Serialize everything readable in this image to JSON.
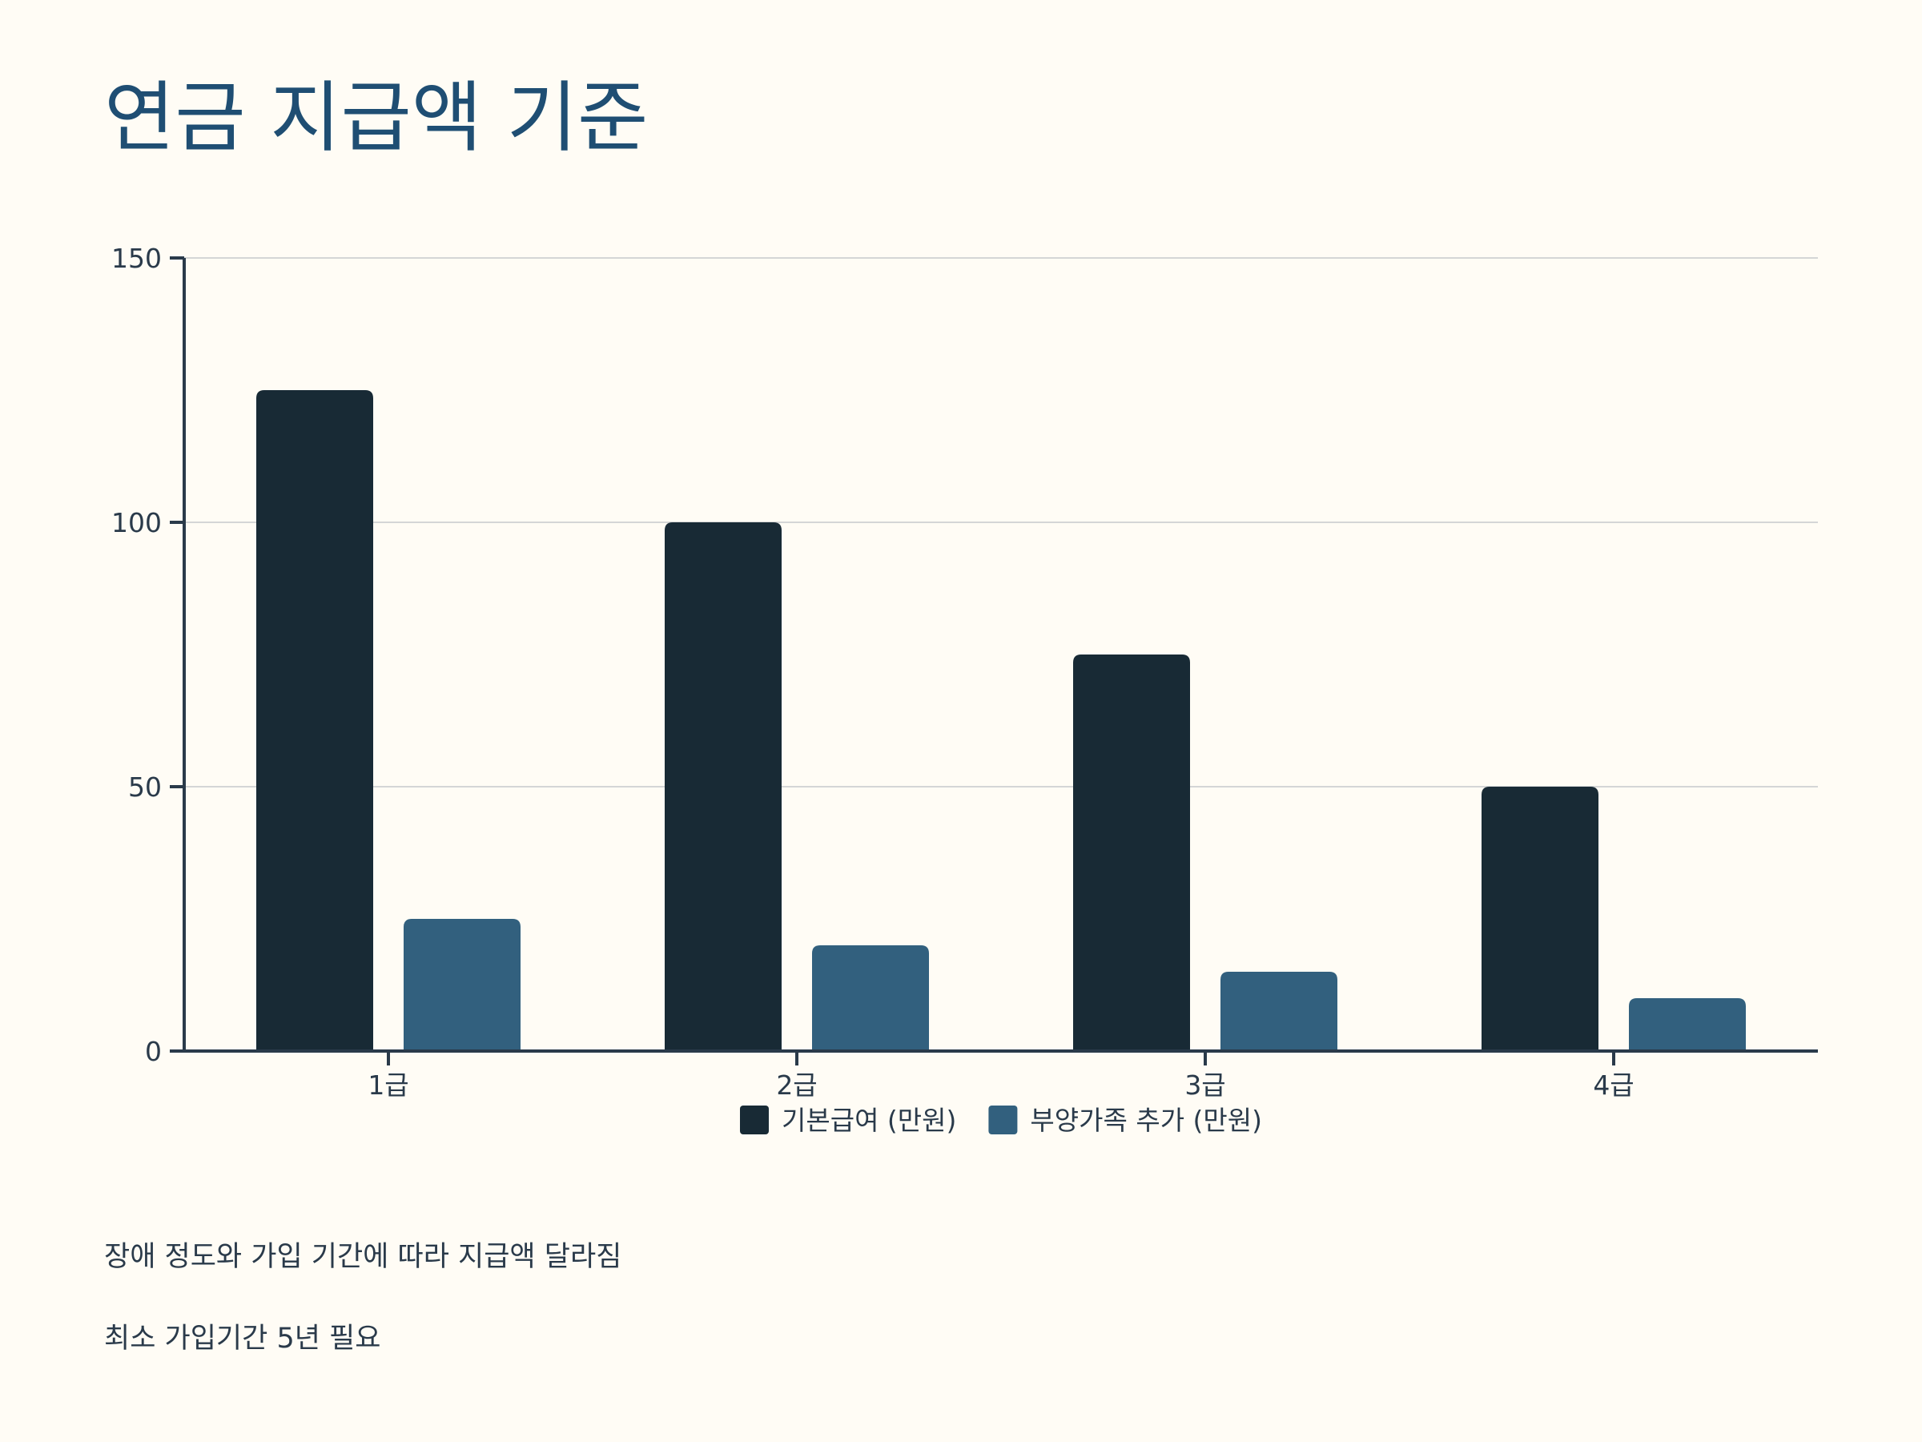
{
  "title": "연금 지급액 기준",
  "chart_data": {
    "type": "bar",
    "categories": [
      "1급",
      "2급",
      "3급",
      "4급"
    ],
    "series": [
      {
        "name": "기본급여 (만원)",
        "values": [
          125,
          100,
          75,
          50
        ],
        "color": "#182a35"
      },
      {
        "name": "부양가족 추가 (만원)",
        "values": [
          25,
          20,
          15,
          10
        ],
        "color": "#32607e"
      }
    ],
    "ylim": [
      0,
      150
    ],
    "yticks": [
      0,
      50,
      100,
      150
    ],
    "grid": true,
    "legend": "bottom-center",
    "xlabel": "",
    "ylabel": ""
  },
  "notes": [
    "장애 정도와 가입 기간에 따라 지급액 달라짐",
    "최소 가입기간 5년 필요"
  ]
}
